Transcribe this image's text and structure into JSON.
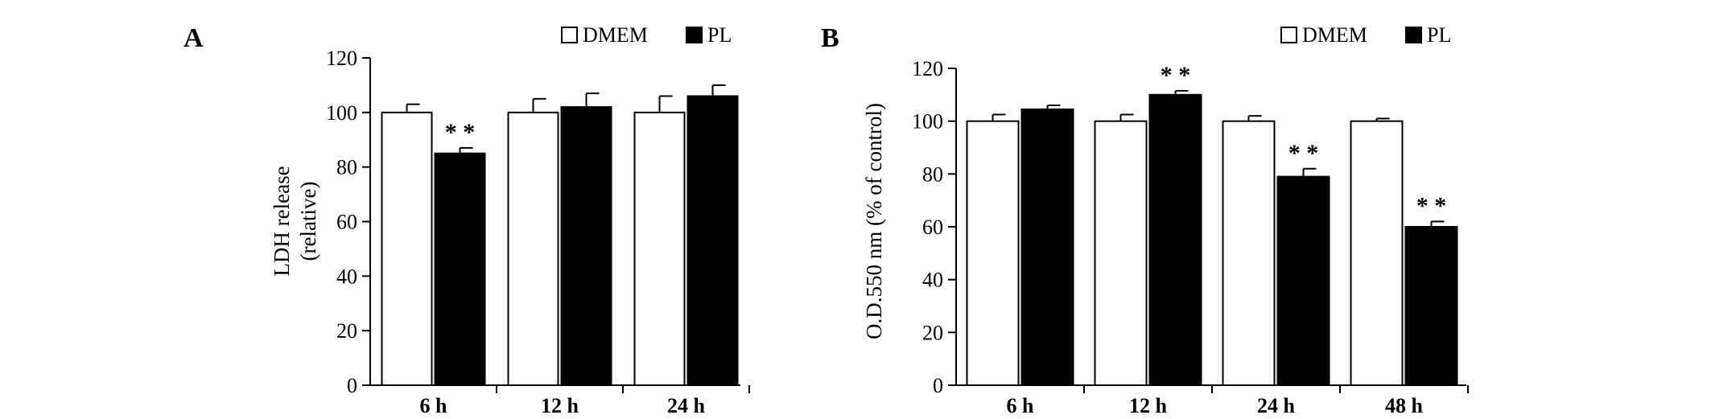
{
  "chart_data": [
    {
      "panel": "A",
      "type": "bar",
      "categories": [
        "6 h",
        "12 h",
        "24 h"
      ],
      "series": [
        {
          "name": "DMEM",
          "fill": "#ffffff",
          "values": [
            100,
            100,
            100
          ],
          "errors": [
            3,
            5,
            6
          ]
        },
        {
          "name": "PL",
          "fill": "#000000",
          "values": [
            85,
            102,
            106
          ],
          "errors": [
            2,
            5,
            4
          ]
        }
      ],
      "significance": [
        {
          "category": "6 h",
          "series": "PL",
          "label": "* *"
        }
      ],
      "ylabel": [
        "LDH release",
        "(relative)"
      ],
      "xlabel": "",
      "ylim": [
        0,
        120
      ],
      "yticks": [
        0,
        20,
        40,
        60,
        80,
        100,
        120
      ],
      "legend": "top-right",
      "grid": false
    },
    {
      "panel": "B",
      "type": "bar",
      "categories": [
        "6 h",
        "12 h",
        "24 h",
        "48 h"
      ],
      "series": [
        {
          "name": "DMEM",
          "fill": "#ffffff",
          "values": [
            100,
            100,
            100,
            100
          ],
          "errors": [
            2.5,
            2.5,
            2,
            1
          ]
        },
        {
          "name": "PL",
          "fill": "#000000",
          "values": [
            104.5,
            110,
            79,
            60
          ],
          "errors": [
            1.5,
            1.5,
            3,
            2
          ]
        }
      ],
      "significance": [
        {
          "category": "12 h",
          "series": "PL",
          "label": "* *"
        },
        {
          "category": "24 h",
          "series": "PL",
          "label": "* *"
        },
        {
          "category": "48 h",
          "series": "PL",
          "label": "* *"
        }
      ],
      "ylabel": [
        "O.D.550 nm (% of control)"
      ],
      "xlabel": "",
      "ylim": [
        0,
        120
      ],
      "yticks": [
        0,
        20,
        40,
        60,
        80,
        100,
        120
      ],
      "legend": "top-right",
      "grid": false
    }
  ]
}
